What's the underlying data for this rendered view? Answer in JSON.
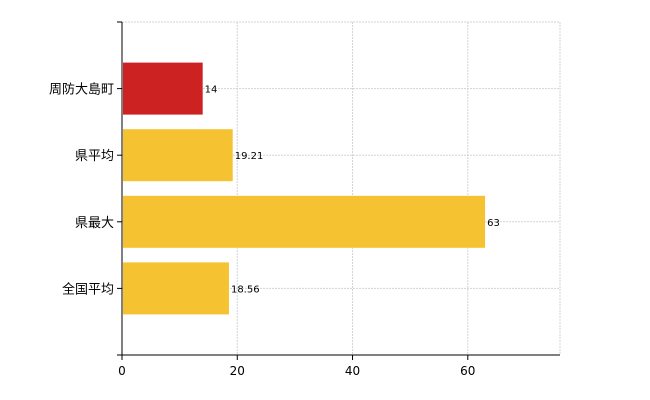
{
  "chart_data": {
    "type": "bar",
    "orientation": "horizontal",
    "title": "",
    "xlabel": "",
    "ylabel": "",
    "categories": [
      "周防大島町",
      "県平均",
      "県最大",
      "全国平均"
    ],
    "values": [
      14,
      19.21,
      63,
      18.56
    ],
    "value_labels": [
      "14",
      "19.21",
      "63",
      "18.56"
    ],
    "bar_colors": [
      "#cc2222",
      "#f5c232",
      "#f5c232",
      "#f5c232"
    ],
    "xlim": [
      0,
      76
    ],
    "xticks": [
      0,
      20,
      40,
      60
    ],
    "xtick_labels": [
      "0",
      "20",
      "40",
      "60"
    ],
    "grid": true
  }
}
